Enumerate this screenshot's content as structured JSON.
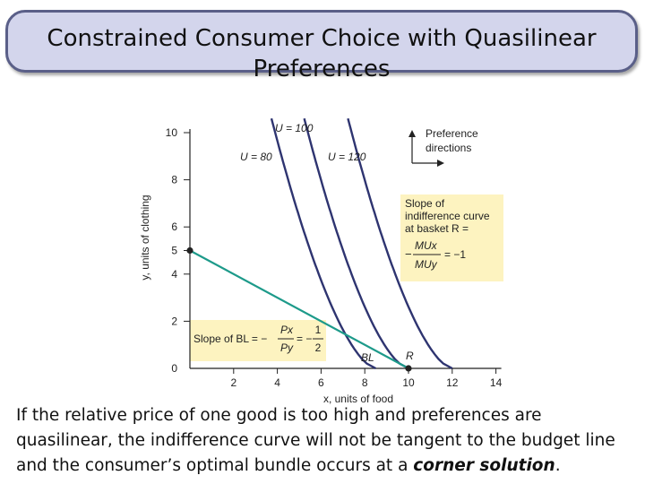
{
  "title": "Constrained Consumer Choice with Quasilinear Preferences",
  "caption": {
    "lead": "If the relative price of one good is too high and preferences are quasilinear, the indifference curve will not be tangent to the budget line and the consumer’s optimal bundle occurs at a ",
    "emphasis": "corner solution",
    "end": "."
  },
  "chart_data": {
    "type": "line",
    "xlabel": "x, units of food",
    "ylabel": "y, units of clothing",
    "xlim": [
      0,
      14
    ],
    "ylim": [
      0,
      10
    ],
    "x_ticks": [
      2,
      4,
      6,
      8,
      10,
      12,
      14
    ],
    "y_ticks": [
      2,
      4,
      5,
      6,
      8,
      10
    ],
    "origin_label": "0",
    "budget_line": {
      "name": "BL",
      "points": [
        [
          0,
          5
        ],
        [
          10,
          0
        ]
      ]
    },
    "points": [
      {
        "name": "R",
        "x": 10,
        "y": 0
      },
      {
        "name": "",
        "x": 0,
        "y": 5
      }
    ],
    "indifference_curves": [
      {
        "name": "U = 80",
        "x_at_zero": 8.5
      },
      {
        "name": "U = 100",
        "x_at_zero": 10
      },
      {
        "name": "U = 120",
        "x_at_zero": 12
      }
    ],
    "legend": {
      "title_line1": "Preference",
      "title_line2": "directions"
    },
    "annotations": {
      "mrs_box": {
        "line1": "Slope of",
        "line2": "indifference curve",
        "line3": "at basket R =",
        "numerator": "MUx",
        "denominator": "MUy",
        "value": "= −1"
      },
      "bl_box": {
        "prefix": "Slope of BL = −",
        "numerator": "Px",
        "denominator": "Py",
        "value": "= −",
        "value_num": "1",
        "value_den": "2"
      }
    },
    "colors": {
      "curve": "#2e3470",
      "budget": "#1d9a8a",
      "highlight": "#fdf3c0",
      "point": "#222222"
    }
  }
}
